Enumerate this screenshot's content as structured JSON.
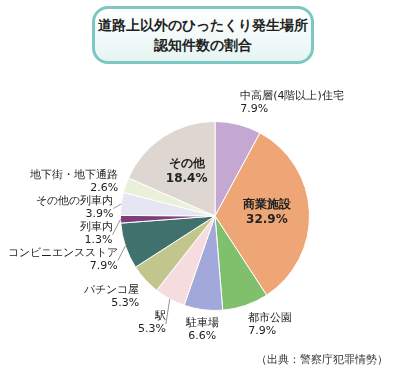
{
  "chart_data": {
    "type": "pie",
    "title": "道路上以外のひったくり発生場所\n認知件数の割合",
    "categories": [
      "中高層(4階以上)住宅",
      "商業施設",
      "都市公園",
      "駐車場",
      "駅",
      "パチンコ屋",
      "コンビニエンスストア",
      "列車内",
      "その他の列車内",
      "地下街・地下通路",
      "その他"
    ],
    "values": [
      7.9,
      32.9,
      7.9,
      6.6,
      5.3,
      5.3,
      7.9,
      1.3,
      3.9,
      2.6,
      18.4
    ],
    "value_labels": [
      "7.9%",
      "32.9%",
      "7.9%",
      "6.6%",
      "5.3%",
      "5.3%",
      "7.9%",
      "1.3%",
      "3.9%",
      "2.6%",
      "18.4%"
    ],
    "colors": [
      "#c4a8d2",
      "#eea676",
      "#80bf6c",
      "#a3a8da",
      "#f6dcde",
      "#c3c68c",
      "#41716c",
      "#7c3e7b",
      "#e5e5f3",
      "#eaf1da",
      "#ddd6d1"
    ],
    "data_labels": true,
    "annotations": [
      "（出典：警察庁犯罪情勢）"
    ]
  }
}
